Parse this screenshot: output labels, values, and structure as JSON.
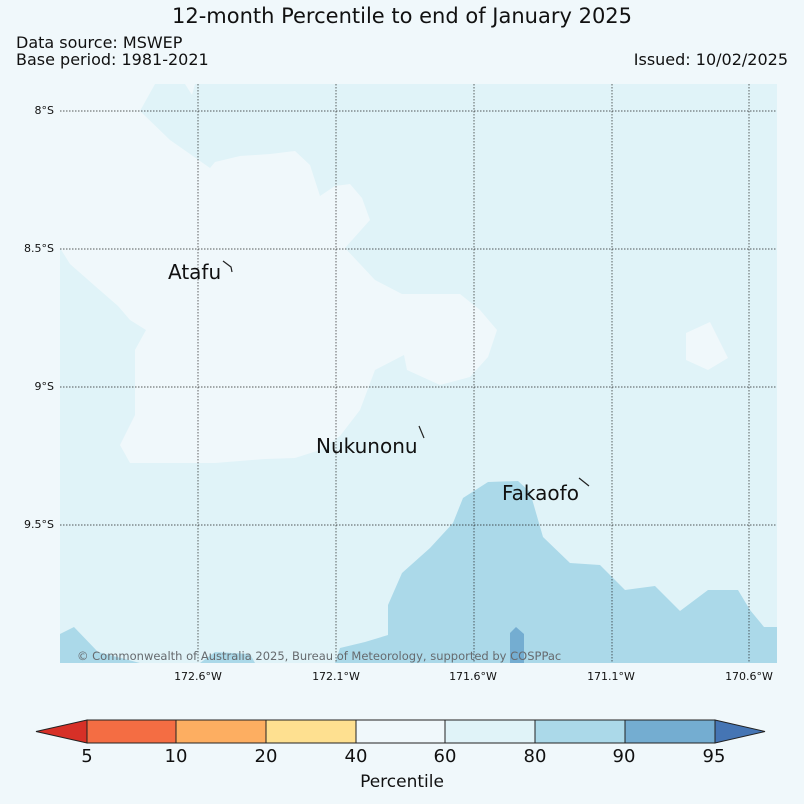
{
  "header": {
    "title": "12-month Percentile to end of January 2025",
    "data_source": "Data source: MSWEP",
    "base_period": "Base period: 1981-2021",
    "issued": "Issued: 10/02/2025"
  },
  "map": {
    "lon_labels": [
      "172.6°W",
      "172.1°W",
      "171.6°W",
      "171.1°W",
      "170.6°W"
    ],
    "lat_labels": [
      "8°S",
      "8.5°S",
      "9°S",
      "9.5°S"
    ],
    "islands": [
      "Atafu",
      "Nukunonu",
      "Fakaofo"
    ],
    "copyright": "© Commonwealth of Australia 2025, Bureau of Meteorology, supported by COSPPac"
  },
  "colorbar": {
    "label": "Percentile",
    "ticks": [
      "5",
      "10",
      "20",
      "40",
      "60",
      "80",
      "90",
      "95"
    ],
    "colors": [
      "#d73027",
      "#f46d43",
      "#fdae61",
      "#fee090",
      "#f0f8fb",
      "#e0f3f8",
      "#abd9e9",
      "#74add1",
      "#4575b4"
    ]
  }
}
